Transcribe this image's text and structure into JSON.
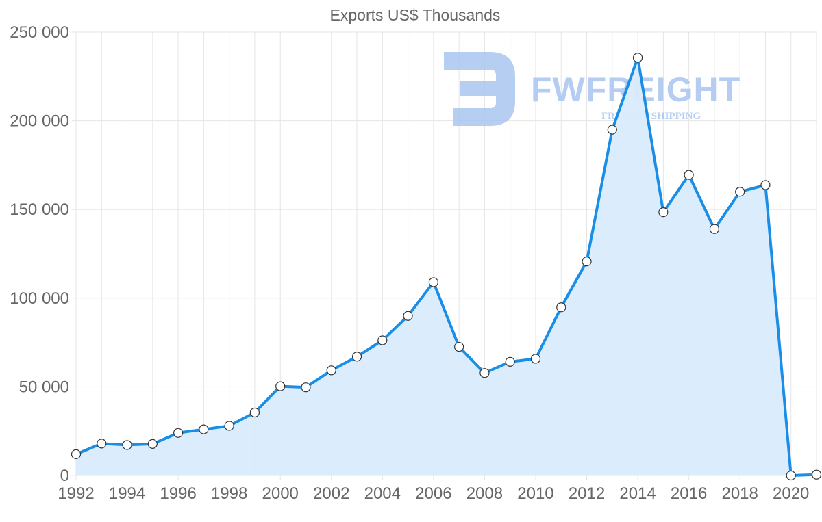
{
  "chart_data": {
    "type": "area",
    "title": "Exports US$ Thousands",
    "xlabel": "",
    "ylabel": "",
    "x": [
      1992,
      1993,
      1994,
      1995,
      1996,
      1997,
      1998,
      1999,
      2000,
      2001,
      2002,
      2003,
      2004,
      2005,
      2006,
      2007,
      2008,
      2009,
      2010,
      2011,
      2012,
      2013,
      2014,
      2015,
      2016,
      2017,
      2018,
      2019,
      2020,
      2021
    ],
    "series": [
      {
        "name": "Exports US$ Thousands",
        "values": [
          12000,
          18000,
          17200,
          17800,
          24000,
          26000,
          28000,
          35500,
          50300,
          49700,
          59300,
          67000,
          76200,
          90000,
          109000,
          72500,
          57800,
          64100,
          65800,
          94800,
          120700,
          195000,
          235600,
          148500,
          169500,
          139000,
          160000,
          163800,
          0,
          500
        ]
      }
    ],
    "xticks": [
      "1992",
      "1994",
      "1996",
      "1998",
      "2000",
      "2002",
      "2004",
      "2006",
      "2008",
      "2010",
      "2012",
      "2014",
      "2016",
      "2018",
      "2020"
    ],
    "yticks": [
      "0",
      "50 000",
      "100 000",
      "150 000",
      "200 000",
      "250 000"
    ],
    "ylim": [
      0,
      250000
    ],
    "xlim": [
      1992,
      2021
    ],
    "grid": true,
    "colors": {
      "line": "#1a8ee6",
      "fill": "#d9ecfc",
      "marker_fill": "#ffffff",
      "marker_stroke": "#333333"
    }
  },
  "watermark": {
    "brand": "FWFREIGHT",
    "tagline": "FREIGHT SHIPPING",
    "color": "#a9c5f0"
  }
}
